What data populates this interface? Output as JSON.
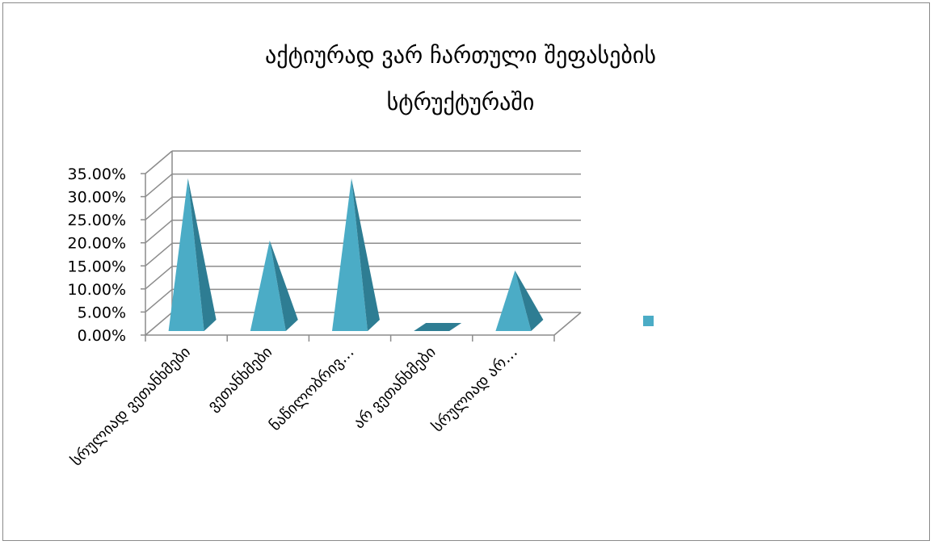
{
  "chart_data": {
    "type": "bar",
    "shape": "3d-pyramid",
    "title_line1": "აქტიურად ვარ ჩართული შეფასების",
    "title_line2": "სტრუქტურაში",
    "categories": [
      "სრულიად ვეთანხმები",
      "ვეთანხმები",
      "ნაწილობრივ…",
      "არ ვეთანხმები",
      "სრულიად არ…"
    ],
    "values": [
      0.34,
      0.205,
      0.34,
      0.0,
      0.14
    ],
    "yticks": [
      "0.00%",
      "5.00%",
      "10.00%",
      "15.00%",
      "20.00%",
      "25.00%",
      "30.00%",
      "35.00%"
    ],
    "ylim": [
      0,
      0.35
    ],
    "grid": true,
    "legend": "right",
    "colors": {
      "front": "#4bacc6",
      "side": "#2e7d93",
      "grid": "#8c8c8c"
    }
  }
}
